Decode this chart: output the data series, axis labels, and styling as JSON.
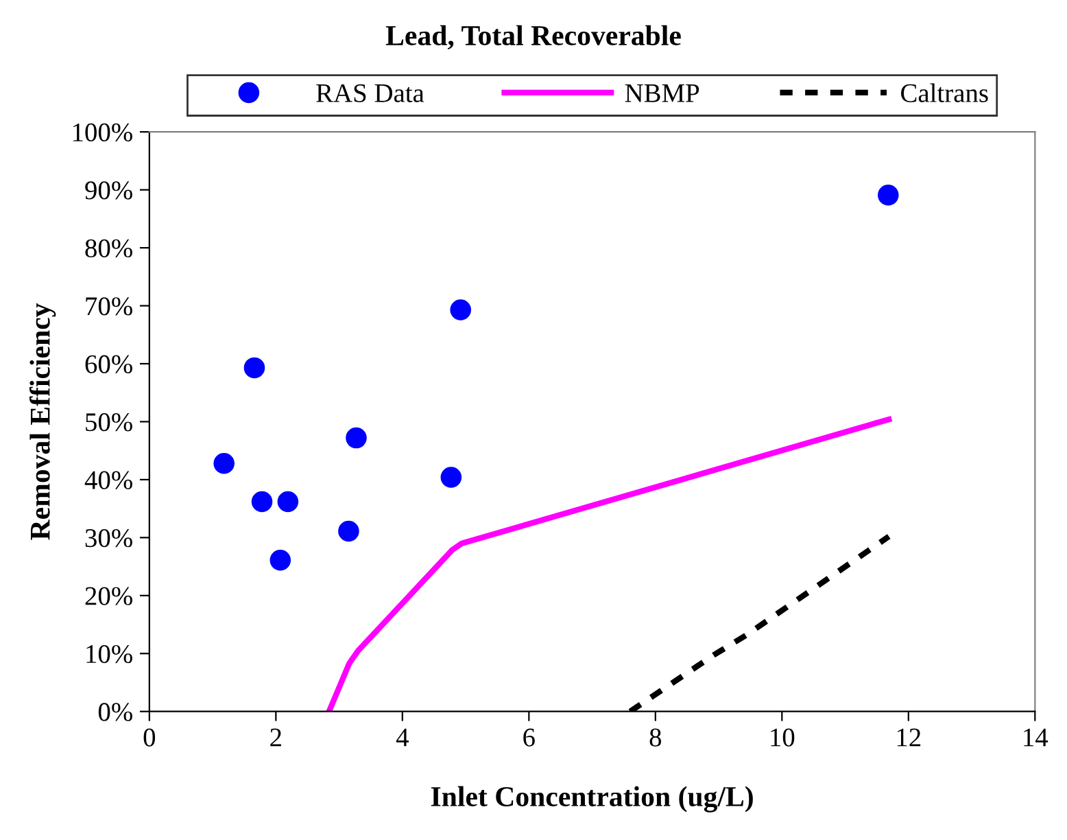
{
  "chart_data": {
    "type": "scatter",
    "title": "Lead, Total Recoverable",
    "xlabel": "Inlet Concentration (ug/L)",
    "ylabel": "Removal Efficiency",
    "xlim": [
      0,
      14
    ],
    "xticks": [
      0,
      2,
      4,
      6,
      8,
      10,
      12,
      14
    ],
    "ylim": [
      0,
      100
    ],
    "yticks": [
      {
        "value": 0,
        "label": "0%"
      },
      {
        "value": 10,
        "label": "10%"
      },
      {
        "value": 20,
        "label": "20%"
      },
      {
        "value": 30,
        "label": "30%"
      },
      {
        "value": 40,
        "label": "40%"
      },
      {
        "value": 50,
        "label": "50%"
      },
      {
        "value": 60,
        "label": "60%"
      },
      {
        "value": 70,
        "label": "70%"
      },
      {
        "value": 80,
        "label": "80%"
      },
      {
        "value": 90,
        "label": "90%"
      },
      {
        "value": 100,
        "label": "100%"
      }
    ],
    "legend": "top",
    "grid": false,
    "series": [
      {
        "name": "RAS Data",
        "color": "#0000ff",
        "marker": "circle",
        "x": [
          1.18,
          1.66,
          1.78,
          2.19,
          2.07,
          3.15,
          3.27,
          4.77,
          4.92,
          11.68
        ],
        "values": [
          42.8,
          59.3,
          36.2,
          36.2,
          26.1,
          31.1,
          47.2,
          40.4,
          69.3,
          89.1
        ]
      },
      {
        "name": "NBMP",
        "type": "line",
        "color": "#ff00ff",
        "line_style": "solid",
        "x": [
          2.84,
          3.16,
          3.3,
          4.79,
          4.94,
          11.69
        ],
        "values": [
          0,
          8.3,
          10.5,
          27.9,
          29.0,
          50.4
        ]
      },
      {
        "name": "Caltrans",
        "type": "line",
        "color": "#000000",
        "line_style": "dashed",
        "x": [
          7.6,
          8.93,
          9.44,
          11.69
        ],
        "values": [
          0,
          9.8,
          13.2,
          30.2
        ]
      }
    ]
  }
}
